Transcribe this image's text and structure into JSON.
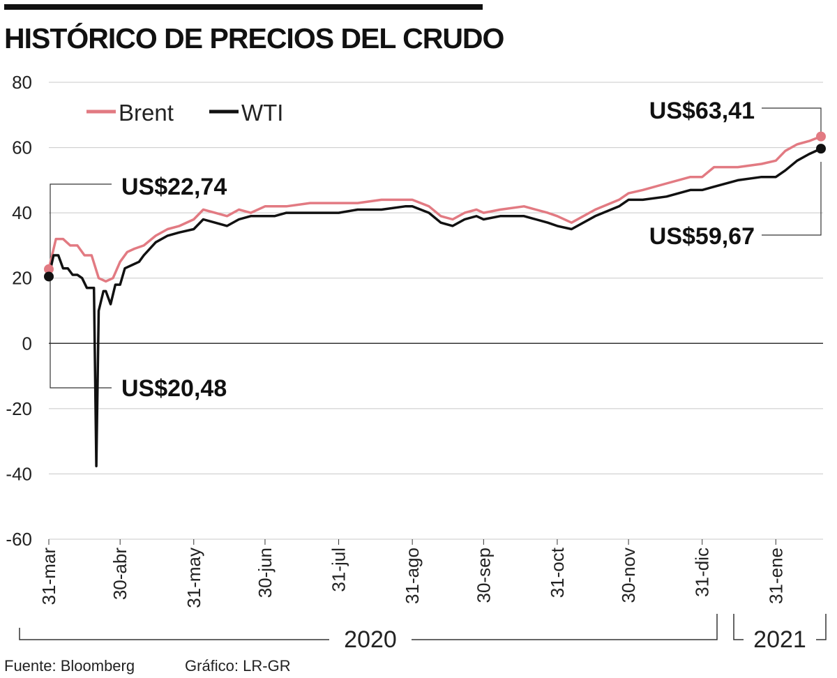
{
  "title": "HISTÓRICO DE PRECIOS DEL CRUDO",
  "source": "Fuente: Bloomberg",
  "credit": "Gráfico: LR-GR",
  "colors": {
    "brent": "#e27a82",
    "wti": "#111111",
    "grid": "#c8c8c8",
    "axis": "#333333"
  },
  "chart_data": {
    "type": "line",
    "title": "HISTÓRICO DE PRECIOS DEL CRUDO",
    "xlabel": "",
    "ylabel": "",
    "ylim": [
      -60,
      80
    ],
    "yticks": [
      80,
      60,
      40,
      20,
      0,
      -20,
      -40,
      -60
    ],
    "ytick_labels": [
      "80",
      "60",
      "40",
      "20",
      "0",
      "-20",
      "-40",
      "-60"
    ],
    "xlim": [
      0,
      325
    ],
    "xtick_labels": [
      "31-mar",
      "30-abr",
      "31-may",
      "30-jun",
      "31-jul",
      "31-ago",
      "30-sep",
      "31-oct",
      "30-nov",
      "31-dic",
      "31-ene"
    ],
    "xtick_days": [
      0,
      30,
      61,
      91,
      122,
      153,
      183,
      214,
      244,
      275,
      306
    ],
    "year_labels": [
      "2020",
      "2021"
    ],
    "grid": true,
    "legend_position": "top-left",
    "series": [
      {
        "name": "Brent",
        "x": [
          0,
          3,
          6,
          9,
          12,
          15,
          18,
          21,
          24,
          27,
          30,
          33,
          36,
          40,
          45,
          50,
          55,
          61,
          65,
          70,
          75,
          80,
          85,
          91,
          95,
          100,
          110,
          122,
          130,
          140,
          150,
          153,
          160,
          165,
          170,
          175,
          180,
          183,
          190,
          200,
          205,
          210,
          214,
          220,
          230,
          240,
          244,
          250,
          260,
          270,
          275,
          280,
          290,
          300,
          306,
          310,
          315,
          320,
          325
        ],
        "y": [
          22.74,
          32,
          32,
          30,
          30,
          27,
          27,
          20,
          19,
          20,
          25,
          28,
          29,
          30,
          33,
          35,
          36,
          38,
          41,
          40,
          39,
          41,
          40,
          42,
          42,
          42,
          43,
          43,
          43,
          44,
          44,
          44,
          42,
          39,
          38,
          40,
          41,
          40,
          41,
          42,
          41,
          40,
          39,
          37,
          41,
          44,
          46,
          47,
          49,
          51,
          51,
          54,
          54,
          55,
          56,
          59,
          61,
          62,
          63.41
        ]
      },
      {
        "name": "WTI",
        "x": [
          0,
          2,
          4,
          6,
          8,
          10,
          12,
          14,
          16,
          18,
          19,
          20,
          21,
          22,
          23,
          24,
          26,
          28,
          30,
          32,
          35,
          38,
          40,
          45,
          50,
          55,
          61,
          65,
          70,
          75,
          80,
          85,
          91,
          95,
          100,
          110,
          122,
          130,
          140,
          150,
          153,
          160,
          165,
          170,
          175,
          180,
          183,
          190,
          200,
          205,
          210,
          214,
          220,
          230,
          240,
          244,
          250,
          260,
          270,
          275,
          280,
          290,
          300,
          306,
          310,
          315,
          320,
          325
        ],
        "y": [
          20.48,
          27,
          27,
          23,
          23,
          21,
          21,
          20,
          17,
          17,
          17,
          -37.6,
          10,
          13,
          16,
          16,
          12,
          18,
          18,
          23,
          24,
          25,
          27,
          31,
          33,
          34,
          35,
          38,
          37,
          36,
          38,
          39,
          39,
          39,
          40,
          40,
          40,
          41,
          41,
          42,
          42,
          40,
          37,
          36,
          38,
          39,
          38,
          39,
          39,
          38,
          37,
          36,
          35,
          39,
          42,
          44,
          44,
          45,
          47,
          47,
          48,
          50,
          51,
          51,
          53,
          56,
          58,
          59.67
        ]
      }
    ],
    "annotations": [
      {
        "label": "US$22,74",
        "series": "Brent",
        "at": "start"
      },
      {
        "label": "US$20,48",
        "series": "WTI",
        "at": "start"
      },
      {
        "label": "US$63,41",
        "series": "Brent",
        "at": "end"
      },
      {
        "label": "US$59,67",
        "series": "WTI",
        "at": "end"
      }
    ]
  }
}
